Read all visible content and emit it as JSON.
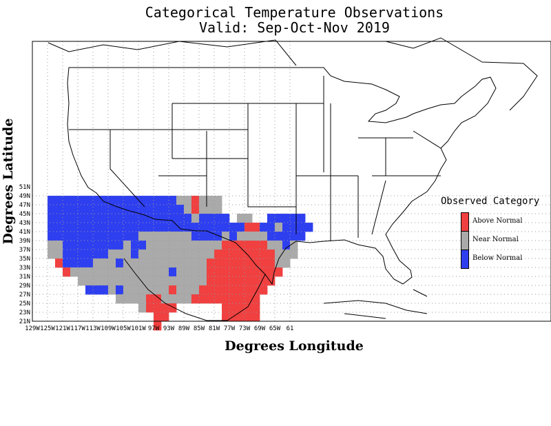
{
  "title": {
    "line1": "Categorical Temperature Observations",
    "line2": "Valid: Sep-Oct-Nov 2019"
  },
  "axes": {
    "xlabel": "Degrees Longitude",
    "ylabel": "Degrees Latitude",
    "x_ticks": [
      "129W",
      "125W",
      "121W",
      "117W",
      "113W",
      "109W",
      "105W",
      "101W",
      "97W",
      "93W",
      "89W",
      "85W",
      "81W",
      "77W",
      "73W",
      "69W",
      "65W",
      "61"
    ],
    "y_ticks": [
      "51N",
      "49N",
      "47N",
      "45N",
      "43N",
      "41N",
      "39N",
      "37N",
      "35N",
      "33N",
      "31N",
      "29N",
      "27N",
      "25N",
      "23N",
      "21N"
    ]
  },
  "legend": {
    "title": "Observed Category",
    "items": [
      {
        "label": "Above Normal",
        "color": "#f04040"
      },
      {
        "label": "Near Normal",
        "color": "#aaaaaa"
      },
      {
        "label": "Below Normal",
        "color": "#2e3ff0"
      }
    ]
  },
  "grid": {
    "cell_degrees": 2,
    "lon_start": -125,
    "lat_top": 49,
    "rows": [
      "BBBBBBBBBBBBBBBBBGGRGGG.................",
      "BBBBBBBBBBBBBBBBBBGRGGG.................",
      "BBBBBBBBBBBBBBBBBBBGBBBB.GG..BBBBB......",
      "BBBBBBBBBBBBBBBBBBBBBBBBBBRRBBGBBBB.....",
      "BBBBBBBBBBBBGGGGGGGBBBBGBGGGGBBBBB......",
      "GGBBBBBBBBGBBGGGGGGGGGGRRRRRRGGBG.......",
      "GGBBBBBBGGGBGGGGGGGGGGRRRRRRRRGGG.......",
      ".RBBBBGGGBGGGGGGGGGGGRRRRRRRRRGG........",
      "..RGGGGGGGGGGGGGBGGGGRRRRRRRRRR.........",
      "....GGGGGGGGGGGGGGGGGRRRRRRRRR..........",
      ".....BBBGBGGGGGGRGGGRRRRRRRRR...........",
      ".........GGGGRRGGGGRRRRRRRRR............",
      "............GRRRR......RRRRR............",
      "..............RR.......RRRRR............",
      "..............R.........................",
      "........................................"
    ],
    "legend_codes": {
      "R": "Above Normal",
      "G": "Near Normal",
      "B": "Below Normal"
    }
  }
}
